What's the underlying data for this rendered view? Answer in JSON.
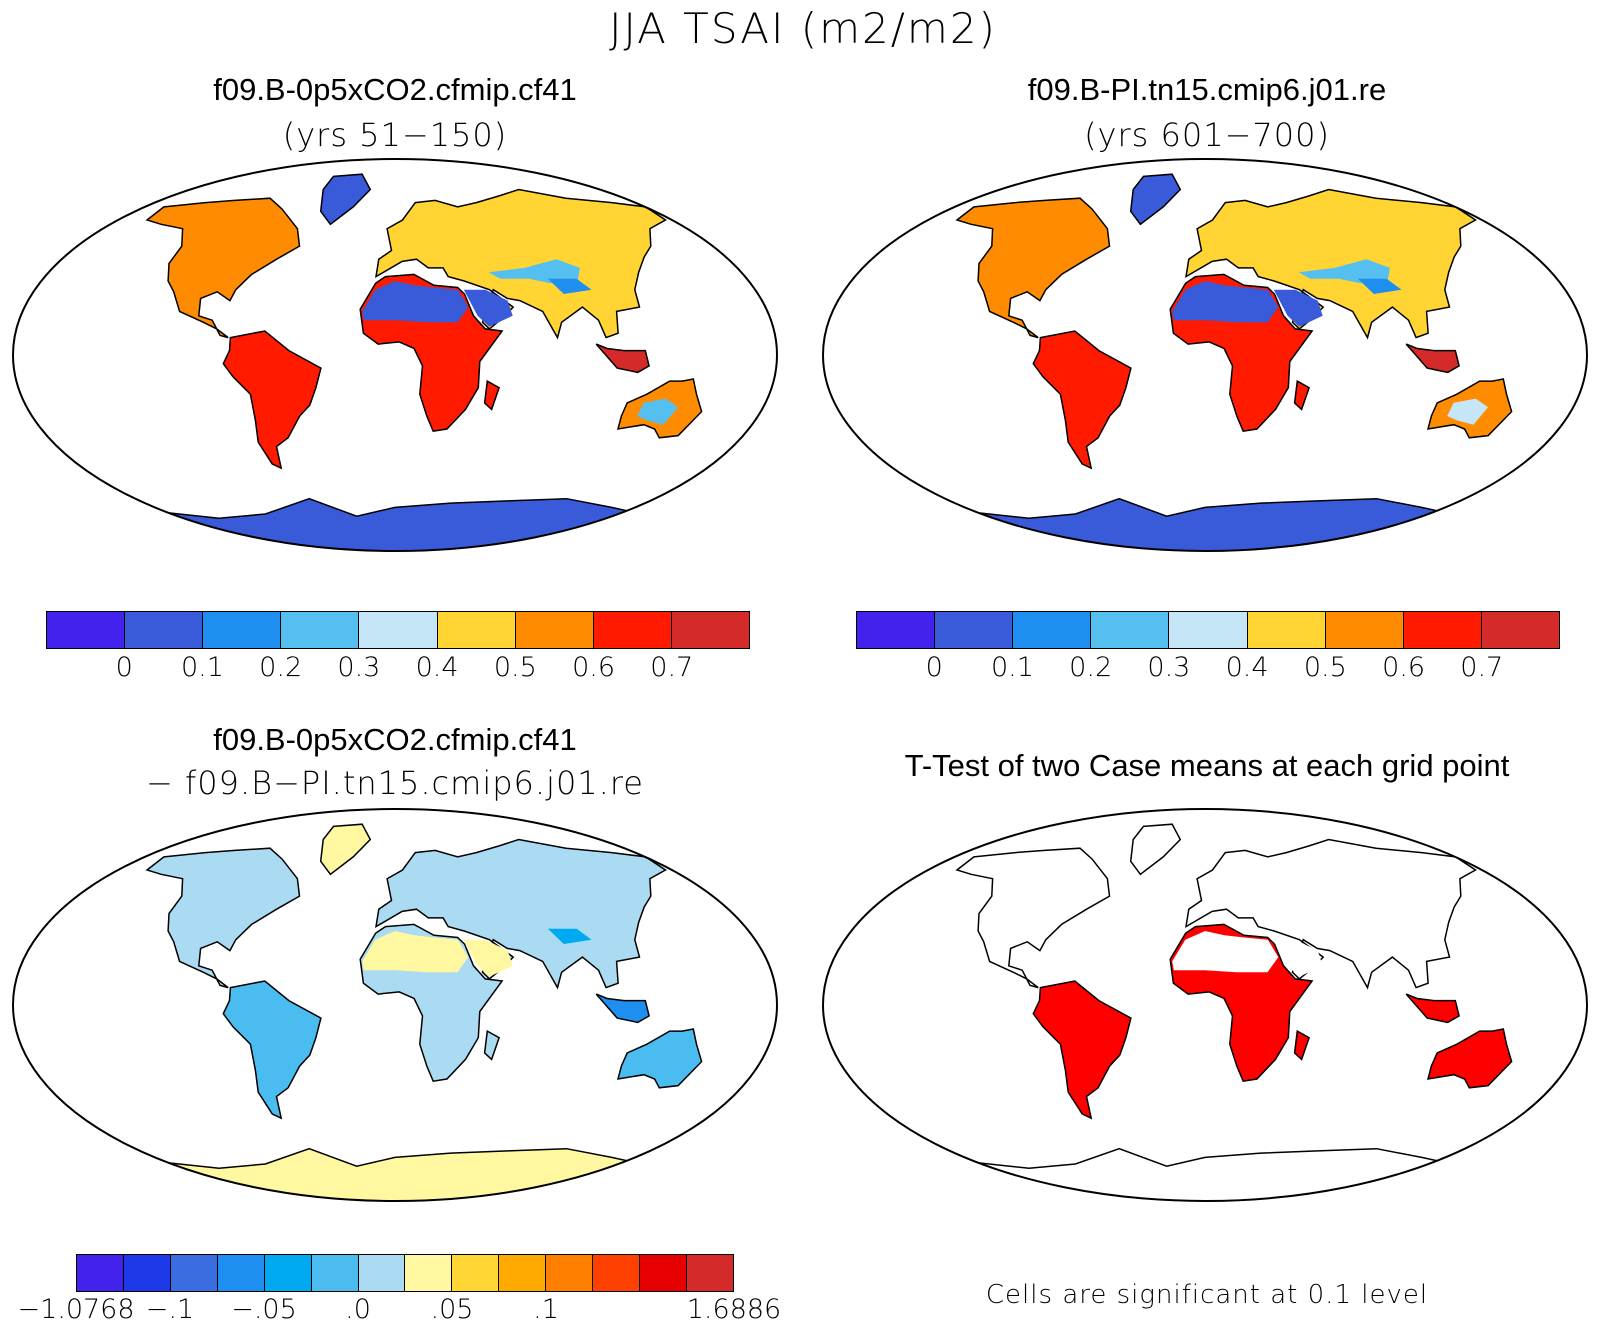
{
  "title": "JJA TSAI (m2/m2)",
  "panels": [
    {
      "id": "case1",
      "title": "f09.B-0p5xCO2.cfmip.cf41",
      "subtitle": "(yrs 51−150)"
    },
    {
      "id": "case2",
      "title": "f09.B-PI.tn15.cmip6.j01.re",
      "subtitle": "(yrs 601−700)"
    },
    {
      "id": "diff",
      "title": "f09.B-0p5xCO2.cfmip.cf41",
      "subtitle": "− f09.B−PI.tn15.cmip6.j01.re"
    },
    {
      "id": "ttest",
      "title": "T-Test of two Case means at each grid point",
      "subtitle": ""
    }
  ],
  "colorbars": {
    "absolute": {
      "colors": [
        "#4422ee",
        "#3a5bd9",
        "#1e8ff0",
        "#55c0f0",
        "#c4e6f7",
        "#ffd433",
        "#ff8c00",
        "#ff1a00",
        "#d42a2a"
      ],
      "labels": [
        "0",
        "0.1",
        "0.2",
        "0.3",
        "0.4",
        "0.5",
        "0.6",
        "0.7"
      ]
    },
    "difference": {
      "colors": [
        "#4422ee",
        "#1e3ae8",
        "#3a6ee0",
        "#1e8ff0",
        "#00aaf0",
        "#4bbcf0",
        "#aadbf2",
        "#fff8a0",
        "#ffd633",
        "#ffaa00",
        "#ff8000",
        "#ff4000",
        "#e60000",
        "#d42a2a"
      ],
      "labels": [
        "−1.0768",
        "−.1",
        "−.05",
        ".0",
        ".05",
        ".1",
        "1.6886"
      ]
    }
  },
  "ttest_note": "Cells are significant at 0.1 level",
  "significance_color": "#ff0000"
}
